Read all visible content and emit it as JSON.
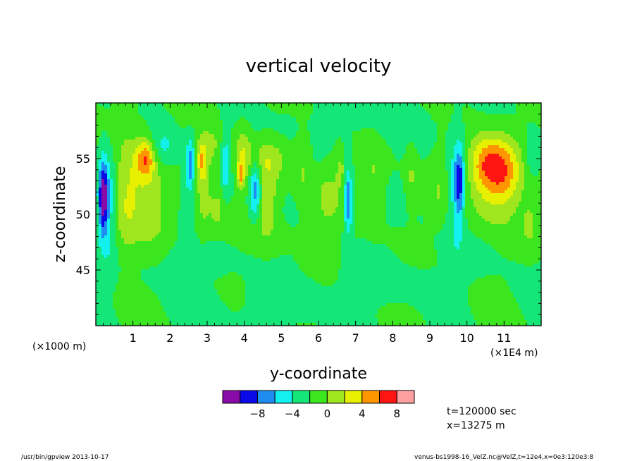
{
  "chart_data": {
    "type": "heatmap",
    "title": "vertical velocity",
    "xlabel": "y-coordinate",
    "ylabel": "z-coordinate",
    "x_unit_left": "(×1000 m)",
    "x_unit_right": "(×1E4 m)",
    "xlim": [
      0,
      12
    ],
    "ylim": [
      40,
      60
    ],
    "x_ticks": [
      "1",
      "2",
      "3",
      "4",
      "5",
      "6",
      "7",
      "8",
      "9",
      "10",
      "11"
    ],
    "y_ticks": [
      "45",
      "50",
      "55"
    ],
    "colorbar": {
      "colors": [
        "#8a0aa8",
        "#0a0ae6",
        "#1e8cf0",
        "#14f0f0",
        "#14e678",
        "#3ce61e",
        "#a0e61e",
        "#e6f000",
        "#ff9600",
        "#ff1414",
        "#ffa0a0"
      ],
      "labels": [
        "−8",
        "−4",
        "0",
        "4",
        "8"
      ]
    },
    "blobs": [
      {
        "x": 0.2,
        "z": 51.5,
        "w": -8.5,
        "sx": 0.09,
        "sz": 2.2
      },
      {
        "x": 0.35,
        "z": 51.0,
        "w": -3.5,
        "sx": 0.18,
        "sz": 3.5
      },
      {
        "x": 1.35,
        "z": 55.0,
        "w": 6.5,
        "sx": 0.18,
        "sz": 1.2
      },
      {
        "x": 1.1,
        "z": 52.0,
        "w": 3.2,
        "sx": 0.35,
        "sz": 3.5
      },
      {
        "x": 0.75,
        "z": 51.0,
        "w": 2.5,
        "sx": 0.25,
        "sz": 4
      },
      {
        "x": 1.6,
        "z": 50.5,
        "w": 2.0,
        "sx": 0.25,
        "sz": 2.5
      },
      {
        "x": 2.55,
        "z": 54.5,
        "w": -5.0,
        "sx": 0.08,
        "sz": 1.5
      },
      {
        "x": 2.45,
        "z": 51.5,
        "w": -1.5,
        "sx": 0.1,
        "sz": 3
      },
      {
        "x": 2.85,
        "z": 55.0,
        "w": 4.5,
        "sx": 0.1,
        "sz": 1.2
      },
      {
        "x": 2.9,
        "z": 52.5,
        "w": 3.0,
        "sx": 0.12,
        "sz": 3
      },
      {
        "x": 1.8,
        "z": 56.0,
        "w": -2.5,
        "sx": 0.25,
        "sz": 1.2
      },
      {
        "x": 3.15,
        "z": 56.0,
        "w": 2.5,
        "sx": 0.15,
        "sz": 1.5
      },
      {
        "x": 3.5,
        "z": 54.5,
        "w": -3.5,
        "sx": 0.08,
        "sz": 1.8
      },
      {
        "x": 3.25,
        "z": 50.5,
        "w": 2.5,
        "sx": 0.15,
        "sz": 1.5
      },
      {
        "x": 4.3,
        "z": 52.2,
        "w": -6.0,
        "sx": 0.12,
        "sz": 2
      },
      {
        "x": 3.95,
        "z": 55.0,
        "w": 3.5,
        "sx": 0.15,
        "sz": 2
      },
      {
        "x": 3.9,
        "z": 53.5,
        "w": 5.0,
        "sx": 0.06,
        "sz": 0.8
      },
      {
        "x": 4.6,
        "z": 51.5,
        "w": 3.5,
        "sx": 0.22,
        "sz": 2.2
      },
      {
        "x": 4.6,
        "z": 55.0,
        "w": 2.5,
        "sx": 0.45,
        "sz": 1.2
      },
      {
        "x": 5.6,
        "z": 54.0,
        "w": 2.0,
        "sx": 0.15,
        "sz": 3
      },
      {
        "x": 6.8,
        "z": 51.0,
        "w": -5.5,
        "sx": 0.08,
        "sz": 2
      },
      {
        "x": 6.75,
        "z": 54.0,
        "w": -2.0,
        "sx": 0.08,
        "sz": 2.5
      },
      {
        "x": 6.25,
        "z": 51.5,
        "w": 2.5,
        "sx": 0.25,
        "sz": 2
      },
      {
        "x": 6.65,
        "z": 54.0,
        "w": 3.0,
        "sx": 0.12,
        "sz": 1.2
      },
      {
        "x": 7.5,
        "z": 53.0,
        "w": 2.2,
        "sx": 0.2,
        "sz": 2.5
      },
      {
        "x": 8.5,
        "z": 53.5,
        "w": 2.0,
        "sx": 0.1,
        "sz": 2
      },
      {
        "x": 9.8,
        "z": 53.0,
        "w": -6.5,
        "sx": 0.1,
        "sz": 2.2
      },
      {
        "x": 9.7,
        "z": 52.0,
        "w": -2.5,
        "sx": 0.16,
        "sz": 3.8
      },
      {
        "x": 9.25,
        "z": 52.0,
        "w": 1.5,
        "sx": 0.15,
        "sz": 2
      },
      {
        "x": 10.5,
        "z": 54.5,
        "w": 5.5,
        "sx": 0.3,
        "sz": 1.8
      },
      {
        "x": 11.0,
        "z": 54.0,
        "w": 5.0,
        "sx": 0.3,
        "sz": 2
      },
      {
        "x": 10.7,
        "z": 52.5,
        "w": 3.0,
        "sx": 0.55,
        "sz": 3
      },
      {
        "x": 11.75,
        "z": 55.0,
        "w": -2.0,
        "sx": 0.15,
        "sz": 1.5
      },
      {
        "x": 11.7,
        "z": 49.0,
        "w": 2.5,
        "sx": 0.15,
        "sz": 1.5
      },
      {
        "x": 2.0,
        "z": 46.0,
        "w": -0.8,
        "sx": 1.0,
        "sz": 1.5
      },
      {
        "x": 8.0,
        "z": 44.0,
        "w": -0.8,
        "sx": 1.2,
        "sz": 1.2
      },
      {
        "x": 5.0,
        "z": 42.0,
        "w": -0.6,
        "sx": 1.5,
        "sz": 1.5
      },
      {
        "x": 10.5,
        "z": 47.0,
        "w": -0.7,
        "sx": 0.8,
        "sz": 1.2
      },
      {
        "x": 4.0,
        "z": 48.5,
        "w": 0.8,
        "sx": 1.2,
        "sz": 0.8
      },
      {
        "x": 7.0,
        "z": 58.0,
        "w": -0.6,
        "sx": 2.0,
        "sz": 1.0
      }
    ]
  },
  "annotations": {
    "time": "t=120000 sec",
    "x_pos": "x=13275 m",
    "footer_left": "/usr/bin/gpview   2013-10-17",
    "footer_right": "venus-bs1998-16_VelZ.nc@VelZ,t=12e4,x=0e3:120e3:8"
  }
}
